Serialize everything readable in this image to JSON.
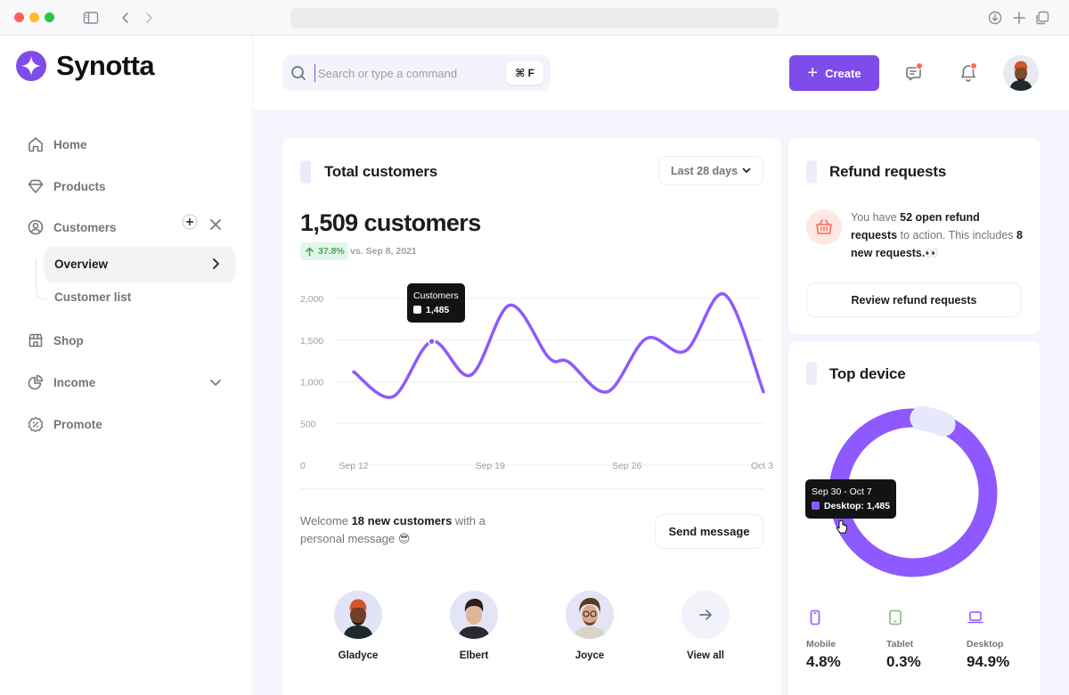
{
  "app": {
    "name": "Synotta"
  },
  "sidebar": {
    "items": [
      {
        "label": "Home"
      },
      {
        "label": "Products"
      },
      {
        "label": "Customers"
      },
      {
        "label": "Shop"
      },
      {
        "label": "Income"
      },
      {
        "label": "Promote"
      }
    ],
    "customers_sub": [
      {
        "label": "Overview"
      },
      {
        "label": "Customer list"
      }
    ]
  },
  "header": {
    "search_placeholder": "Search or type a command",
    "shortcut": "⌘ F",
    "create_label": "Create"
  },
  "total_customers": {
    "title": "Total customers",
    "range": "Last 28 days",
    "big_number": "1,509 customers",
    "change": "37.8%",
    "change_note": "vs. Sep 8, 2021",
    "tooltip_title": "Customers",
    "tooltip_value": "1,485",
    "welcome_prefix": "Welcome",
    "welcome_bold": "18 new customers",
    "welcome_suffix": "with a personal message 😎",
    "send_label": "Send message",
    "people": [
      {
        "name": "Gladyce"
      },
      {
        "name": "Elbert"
      },
      {
        "name": "Joyce"
      }
    ],
    "view_all": "View all"
  },
  "chart_data": {
    "type": "line",
    "title": "",
    "xlabel": "",
    "ylabel": "",
    "x_ticks": [
      "Sep 12",
      "Sep 19",
      "Sep 26",
      "Oct 3"
    ],
    "y_ticks": [
      "2,000",
      "1,500",
      "1,000",
      "500",
      "0"
    ],
    "ylim": [
      0,
      2000
    ],
    "grid": true,
    "series": [
      {
        "color": "#8e59ff",
        "points": [
          {
            "x": "Sep 12",
            "y": 1120
          },
          {
            "x": "Sep 14",
            "y": 820
          },
          {
            "x": "Sep 16",
            "y": 1485
          },
          {
            "x": "Sep 18",
            "y": 1080
          },
          {
            "x": "Sep 20",
            "y": 1920
          },
          {
            "x": "Sep 22",
            "y": 1290
          },
          {
            "x": "Sep 23",
            "y": 1240
          },
          {
            "x": "Sep 25",
            "y": 880
          },
          {
            "x": "Sep 27",
            "y": 1520
          },
          {
            "x": "Sep 29",
            "y": 1370
          },
          {
            "x": "Oct 1",
            "y": 2050
          },
          {
            "x": "Oct 3",
            "y": 880
          }
        ]
      }
    ]
  },
  "refund": {
    "title": "Refund requests",
    "text_1": "You have",
    "text_bold_1": "52 open refund requests",
    "text_2": "to action. This includes",
    "text_bold_2": "8 new requests.",
    "emoji": "👀",
    "button": "Review refund requests"
  },
  "top_device": {
    "title": "Top device",
    "tooltip_range": "Sep 30 - Oct 7",
    "tooltip_value": "Desktop: 1,485",
    "donut": [
      {
        "name": "Desktop",
        "value": 94.9,
        "color": "#8e59ff"
      },
      {
        "name": "Tablet",
        "value": 0.3,
        "color": "#83bf6e"
      },
      {
        "name": "Mobile",
        "value": 4.8,
        "color": "#e6e8fb"
      }
    ],
    "devices": [
      {
        "label": "Mobile",
        "value": "4.8%"
      },
      {
        "label": "Tablet",
        "value": "0.3%"
      },
      {
        "label": "Desktop",
        "value": "94.9%"
      }
    ]
  }
}
